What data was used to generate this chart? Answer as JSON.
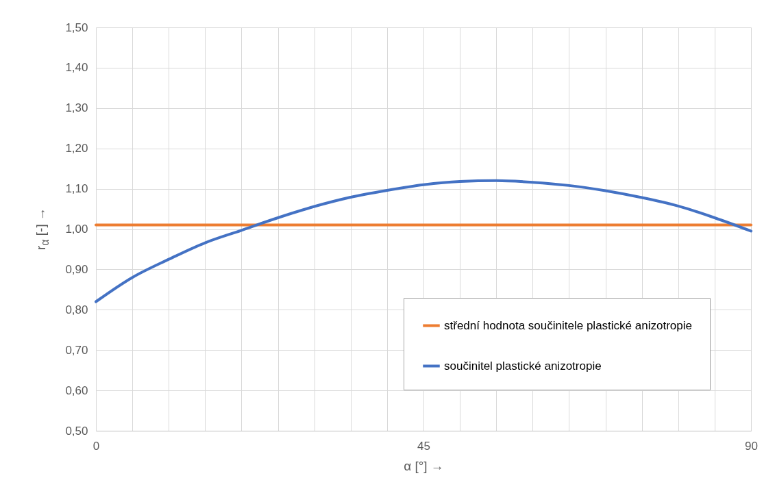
{
  "chart_data": {
    "type": "line",
    "xlabel": "α [°]  →",
    "ylabel": "r$_{α}$ [-]  →",
    "xlim": [
      0,
      90
    ],
    "xticks": [
      0,
      {
        "value": 5,
        "label": null
      },
      {
        "value": 10,
        "label": null
      },
      {
        "value": 15,
        "label": null
      },
      {
        "value": 20,
        "label": null
      },
      {
        "value": 25,
        "label": null
      },
      {
        "value": 30,
        "label": null
      },
      {
        "value": 35,
        "label": null
      },
      {
        "value": 40,
        "label": null
      },
      45,
      {
        "value": 50,
        "label": null
      },
      {
        "value": 55,
        "label": null
      },
      {
        "value": 60,
        "label": null
      },
      {
        "value": 65,
        "label": null
      },
      {
        "value": 70,
        "label": null
      },
      {
        "value": 75,
        "label": null
      },
      {
        "value": 80,
        "label": null
      },
      {
        "value": 85,
        "label": null
      },
      90
    ],
    "ylim": [
      0.5,
      1.5
    ],
    "yticks": [
      {
        "value": 0.5,
        "label": "0,50"
      },
      {
        "value": 0.6,
        "label": "0,60"
      },
      {
        "value": 0.7,
        "label": "0,70"
      },
      {
        "value": 0.8,
        "label": "0,80"
      },
      {
        "value": 0.9,
        "label": "0,90"
      },
      {
        "value": 1.0,
        "label": "1,00"
      },
      {
        "value": 1.1,
        "label": "1,10"
      },
      {
        "value": 1.2,
        "label": "1,20"
      },
      {
        "value": 1.3,
        "label": "1,30"
      },
      {
        "value": 1.4,
        "label": "1,40"
      },
      {
        "value": 1.5,
        "label": "1,50"
      }
    ],
    "grid": true,
    "legend": "bottom right",
    "line_style": "solid",
    "series": [
      {
        "name": "střední hodnota součinitele plastické anizotropie",
        "color": "#ed7d31",
        "x": [
          0,
          90
        ],
        "values": [
          1.01,
          1.01
        ]
      },
      {
        "name": "součinitel plastické anizotropie",
        "color": "#4472c4",
        "x": [
          0,
          5,
          10,
          15,
          20,
          25,
          30,
          35,
          40,
          45,
          50,
          55,
          60,
          65,
          70,
          75,
          80,
          85,
          90
        ],
        "values": [
          0.82,
          0.88,
          0.925,
          0.966,
          0.997,
          1.028,
          1.056,
          1.079,
          1.096,
          1.11,
          1.118,
          1.12,
          1.116,
          1.108,
          1.095,
          1.078,
          1.057,
          1.028,
          0.995
        ]
      }
    ]
  }
}
